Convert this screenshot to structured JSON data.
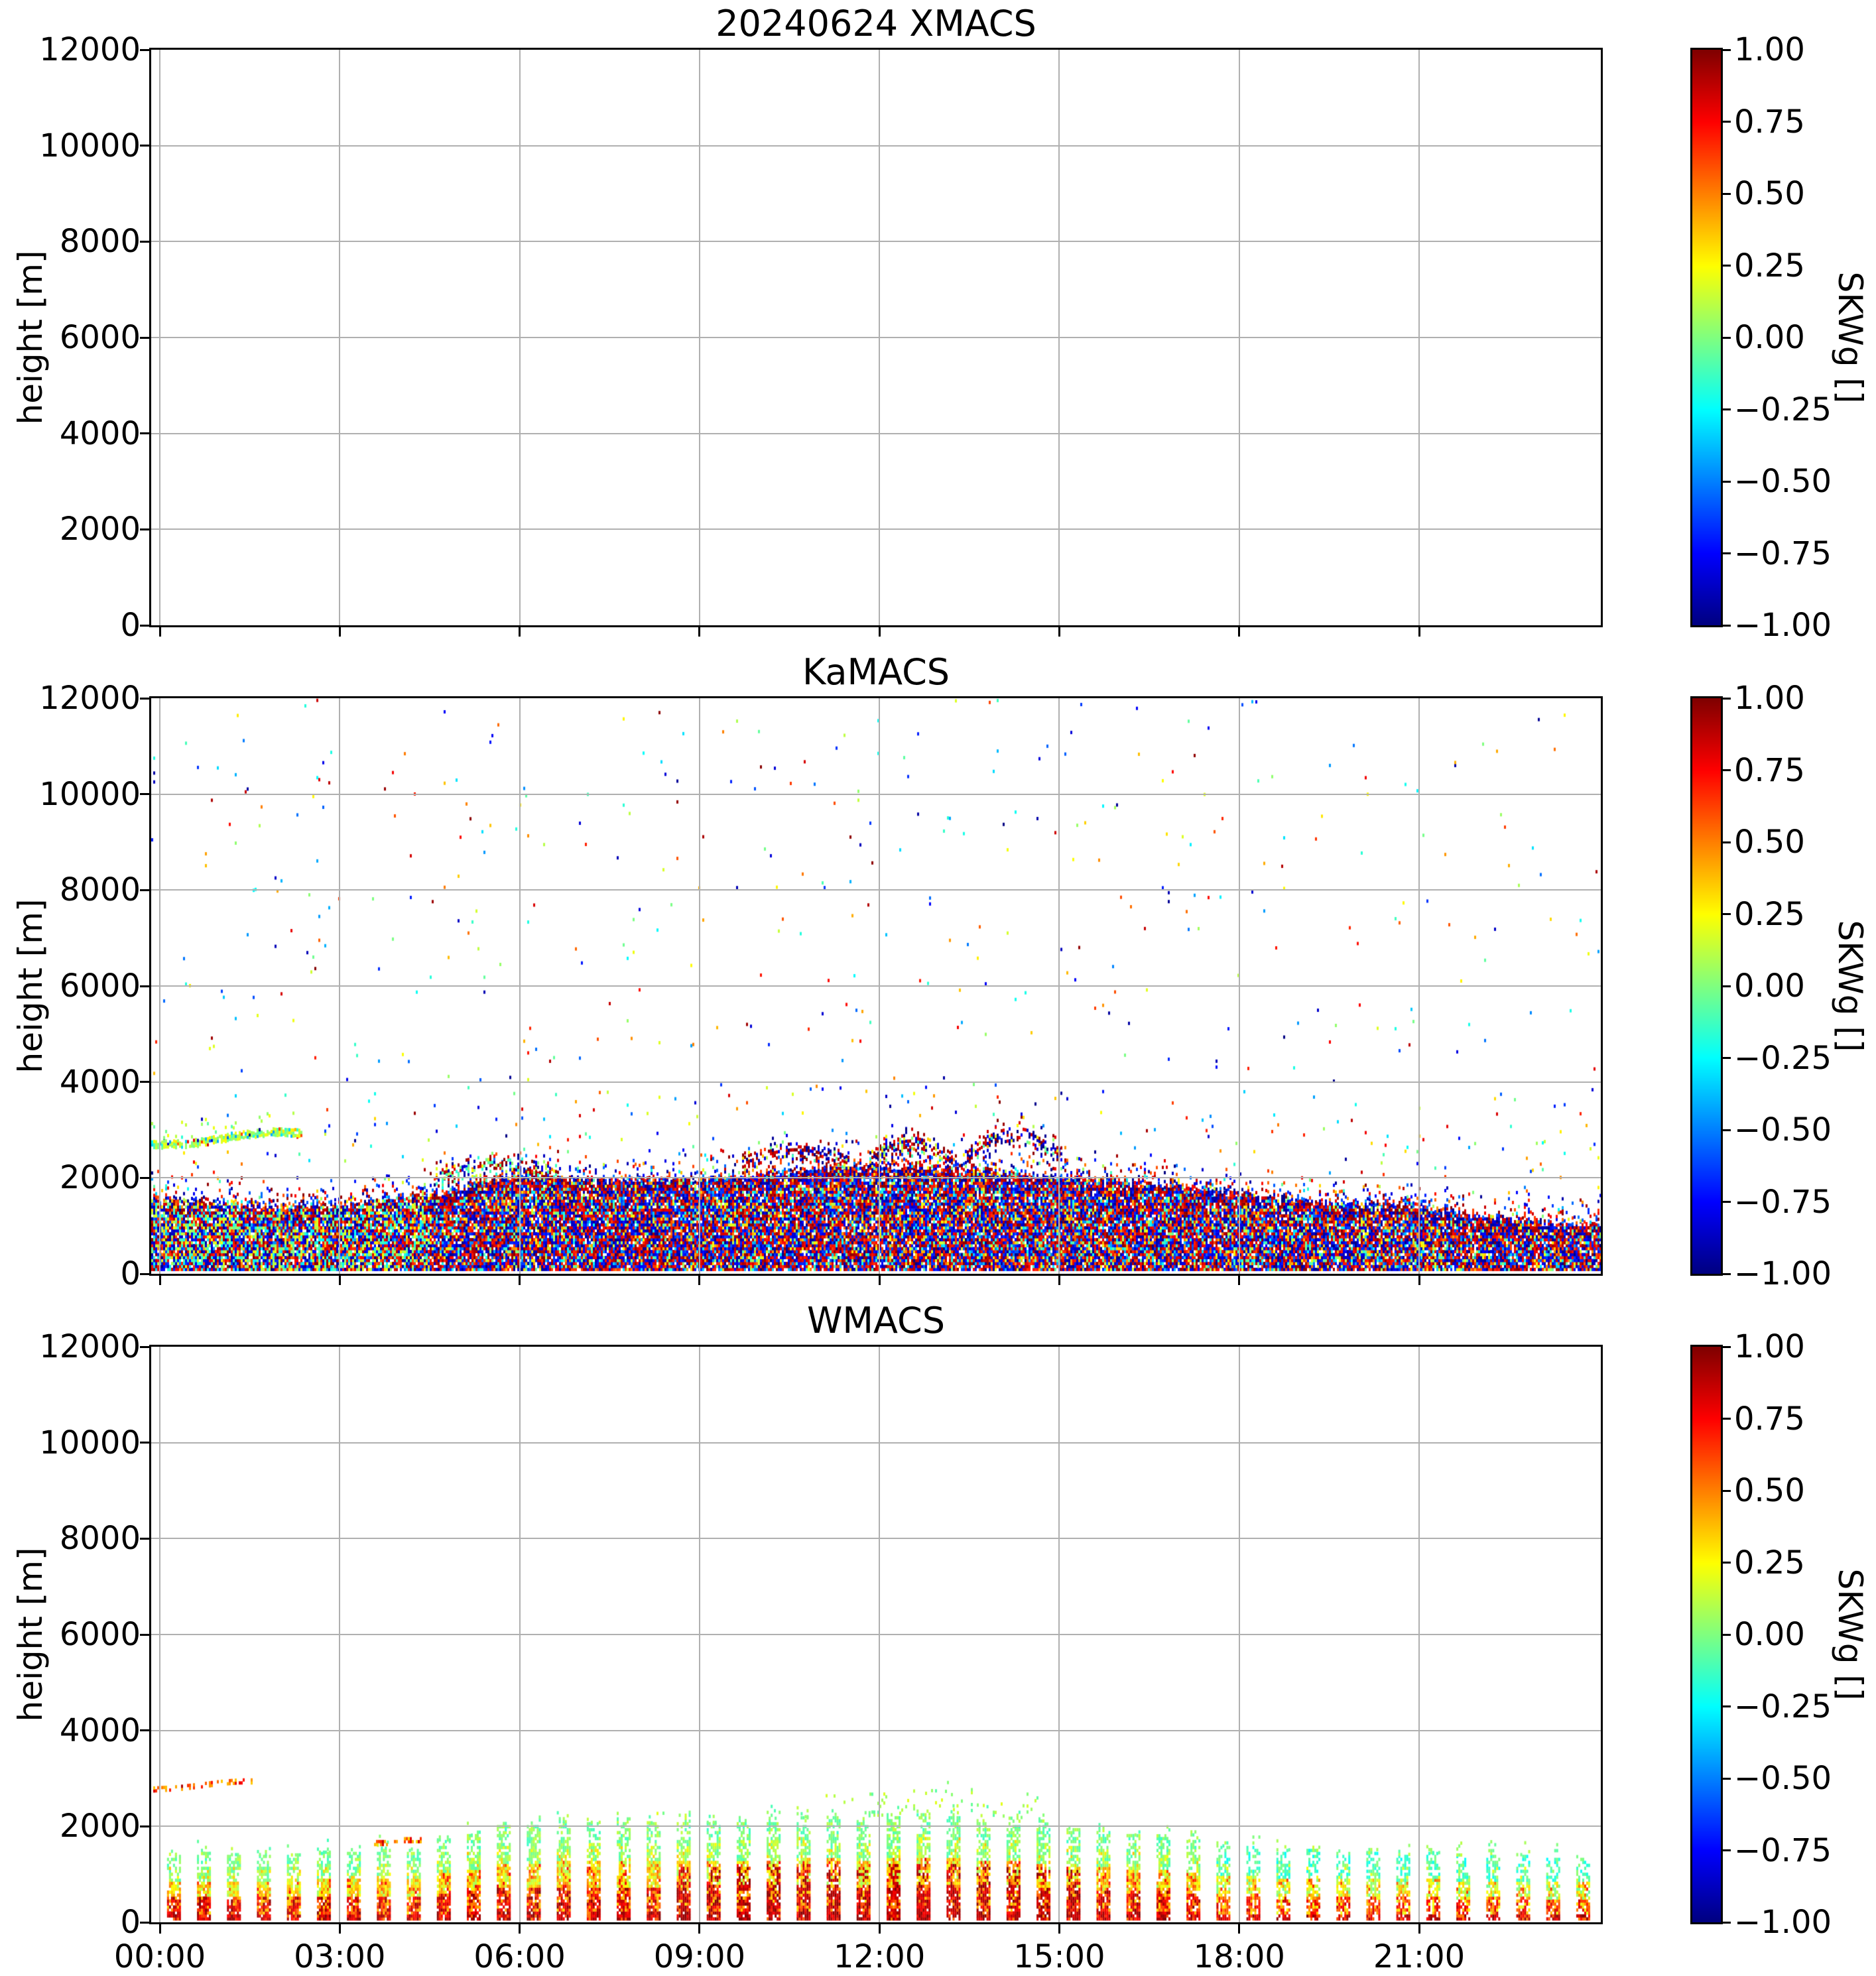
{
  "figure": {
    "background": "#ffffff"
  },
  "panels": [
    {
      "id": "xmacs",
      "title": "20240624 XMACS",
      "ylabel": "height [m]",
      "yticks": [
        "12000",
        "10000",
        "8000",
        "6000",
        "4000",
        "2000",
        "0"
      ],
      "xticks": []
    },
    {
      "id": "kamacs",
      "title": "KaMACS",
      "ylabel": "height [m]",
      "yticks": [
        "12000",
        "10000",
        "8000",
        "6000",
        "4000",
        "2000",
        "0"
      ],
      "xticks": []
    },
    {
      "id": "wmacs",
      "title": "WMACS",
      "ylabel": "height [m]",
      "yticks": [
        "12000",
        "10000",
        "8000",
        "6000",
        "4000",
        "2000",
        "0"
      ],
      "xticks": [
        "00:00",
        "03:00",
        "06:00",
        "09:00",
        "12:00",
        "15:00",
        "18:00",
        "21:00"
      ]
    }
  ],
  "colorbar": {
    "label": "SKWg []",
    "ticks": [
      "1.00",
      "0.75",
      "0.50",
      "0.25",
      "0.00",
      "−0.25",
      "−0.50",
      "−0.75",
      "−1.00"
    ],
    "vmin": -1,
    "vmax": 1,
    "colormap": "jet",
    "top_color": "#7f0000",
    "zero_color": "#7dff76",
    "bottom_color": "#00007f"
  },
  "chart_data": [
    {
      "type": "heatmap",
      "panel": "XMACS",
      "title": "20240624 XMACS",
      "ylabel": "height [m]",
      "ylim": [
        0,
        12000
      ],
      "x_hours_range": [
        -0.14,
        24.03
      ],
      "xticks_hours": [
        0,
        3,
        6,
        9,
        12,
        15,
        18,
        21
      ],
      "xtick_labels": [
        "00:00",
        "03:00",
        "06:00",
        "09:00",
        "12:00",
        "15:00",
        "18:00",
        "21:00"
      ],
      "grid": true,
      "colorbar_label": "SKWg []",
      "colorbar_range": [
        -1,
        1
      ],
      "colormap": "jet",
      "values": "empty - no detections"
    },
    {
      "type": "heatmap",
      "panel": "KaMACS",
      "title": "KaMACS",
      "ylabel": "height [m]",
      "ylim": [
        0,
        12000
      ],
      "x_hours_range": [
        -0.14,
        24.03
      ],
      "xticks_hours": [
        0,
        3,
        6,
        9,
        12,
        15,
        18,
        21
      ],
      "grid": true,
      "colorbar_label": "SKWg []",
      "colorbar_range": [
        -1,
        1
      ],
      "colormap": "jet",
      "layers": {
        "boundary_layer_noise": {
          "description": "dense random skewness speckle (full jet range) from ~70 m to a time-varying top",
          "base_m": 70,
          "fill_fraction": 0.95,
          "transition_band_m": 600,
          "top_profile_m": [
            [
              -0.2,
              1500
            ],
            [
              0,
              1520
            ],
            [
              1,
              1450
            ],
            [
              2,
              1360
            ],
            [
              3,
              1420
            ],
            [
              4,
              1520
            ],
            [
              4.7,
              1650
            ],
            [
              5.4,
              1880
            ],
            [
              6.1,
              2050
            ],
            [
              7,
              1960
            ],
            [
              8,
              1900
            ],
            [
              9,
              1960
            ],
            [
              10,
              2060
            ],
            [
              11,
              2130
            ],
            [
              12,
              2200
            ],
            [
              13,
              2150
            ],
            [
              14,
              2080
            ],
            [
              15,
              1960
            ],
            [
              16,
              1890
            ],
            [
              17,
              1790
            ],
            [
              18,
              1640
            ],
            [
              19,
              1500
            ],
            [
              20,
              1440
            ],
            [
              21,
              1370
            ],
            [
              22,
              1150
            ],
            [
              23,
              1040
            ],
            [
              24.1,
              1000
            ]
          ]
        },
        "clear_air_speckle": {
          "density_near": 0.012,
          "extent_above_top_m": 1800,
          "density_high": 0.004,
          "max_height_m": 12000
        },
        "green_streak": {
          "hours": [
            -0.15,
            2.35
          ],
          "thickness_m": 140,
          "skw_range": [
            -0.1,
            0.3
          ],
          "height_profile_m": [
            [
              -0.15,
              2680
            ],
            [
              0.5,
              2700
            ],
            [
              0.9,
              2780
            ],
            [
              1.3,
              2880
            ],
            [
              1.7,
              2930
            ],
            [
              2.0,
              2950
            ],
            [
              2.35,
              2920
            ]
          ]
        },
        "elevated_plumes": [
          {
            "hours": [
              4.6,
              6.6
            ],
            "base_m": 2000,
            "peak_m": 2260,
            "sigma_m": 130,
            "density": 0.5,
            "palette": "mixed"
          },
          {
            "hours": [
              9.7,
              11.5
            ],
            "base_m": 2250,
            "peak_m": 2550,
            "sigma_m": 140,
            "density": 0.5,
            "palette": "dark"
          },
          {
            "hours": [
              11.8,
              13.2
            ],
            "base_m": 2300,
            "peak_m": 2700,
            "sigma_m": 150,
            "density": 0.55,
            "palette": "dark"
          },
          {
            "hours": [
              13.4,
              15.1
            ],
            "base_m": 2350,
            "peak_m": 2900,
            "sigma_m": 150,
            "density": 0.45,
            "palette": "dark"
          }
        ]
      }
    },
    {
      "type": "heatmap",
      "panel": "WMACS",
      "title": "WMACS",
      "ylabel": "height [m]",
      "ylim": [
        0,
        12000
      ],
      "x_hours_range": [
        -0.14,
        24.03
      ],
      "xticks_hours": [
        0,
        3,
        6,
        9,
        12,
        15,
        18,
        21
      ],
      "grid": true,
      "colorbar_label": "SKWg []",
      "colorbar_range": [
        -1,
        1
      ],
      "colormap": "jet",
      "layers": {
        "bursts": {
          "description": "measurement bursts every 30 min; positive skewness (red) near ground, green tops",
          "interval_h": 0.5,
          "first_start_h": 0.12,
          "burst_width_h": 0.21,
          "base_m": 50,
          "top_profile_m": [
            [
              0,
              1450
            ],
            [
              1,
              1400
            ],
            [
              2,
              1380
            ],
            [
              3,
              1430
            ],
            [
              4,
              1500
            ],
            [
              4.7,
              1660
            ],
            [
              5.3,
              1850
            ],
            [
              6,
              2000
            ],
            [
              7,
              2050
            ],
            [
              8,
              2010
            ],
            [
              9,
              2060
            ],
            [
              10,
              2140
            ],
            [
              11,
              2150
            ],
            [
              12,
              2110
            ],
            [
              12.7,
              2200
            ],
            [
              13.5,
              2150
            ],
            [
              14.5,
              2050
            ],
            [
              15.5,
              1950
            ],
            [
              16.3,
              1820
            ],
            [
              17,
              1700
            ],
            [
              18,
              1560
            ],
            [
              19,
              1500
            ],
            [
              20,
              1450
            ],
            [
              21,
              1410
            ],
            [
              22,
              1380
            ],
            [
              23,
              1350
            ],
            [
              23.7,
              1320
            ]
          ],
          "strata_skw_by_height_fraction": [
            {
              "frac": [
                0,
                0.1
              ],
              "skw": [
                0.6,
                1.0
              ]
            },
            {
              "frac": [
                0.1,
                0.35
              ],
              "skw": [
                0.3,
                1.0
              ]
            },
            {
              "frac": [
                0.35,
                0.6
              ],
              "skw": [
                0.05,
                0.6
              ]
            },
            {
              "frac": [
                0.6,
                0.8
              ],
              "skw": [
                -0.12,
                0.3
              ]
            },
            {
              "frac": [
                0.8,
                1.0
              ],
              "skw": [
                -0.15,
                0.2
              ]
            }
          ],
          "midday_dark_core_hours": [
            8.5,
            15.5
          ]
        },
        "orange_streak": {
          "hours": [
            -0.15,
            1.55
          ],
          "thickness_m": 90,
          "skw_range": [
            0.3,
            0.8
          ],
          "height_profile_m": [
            [
              -0.15,
              2760
            ],
            [
              0.3,
              2790
            ],
            [
              0.7,
              2850
            ],
            [
              1.0,
              2900
            ],
            [
              1.3,
              2930
            ],
            [
              1.55,
              2930
            ]
          ]
        },
        "patches": [
          {
            "hours": [
              3.55,
              3.95
            ],
            "height_m": [
              1600,
              1710
            ],
            "skw_range": [
              0.3,
              0.9
            ]
          },
          {
            "hours": [
              4.05,
              4.35
            ],
            "height_m": [
              1660,
              1770
            ],
            "skw_range": [
              0.3,
              0.9
            ]
          }
        ],
        "green_plumes": [
          {
            "hours": [
              7.6,
              10.6
            ],
            "top_m": 2350,
            "density": 0.03
          },
          {
            "hours": [
              11.1,
              14.7
            ],
            "top_m": 2650,
            "peak_m": 2900,
            "peak_hour": 13.0,
            "density": 0.05
          }
        ]
      }
    }
  ]
}
